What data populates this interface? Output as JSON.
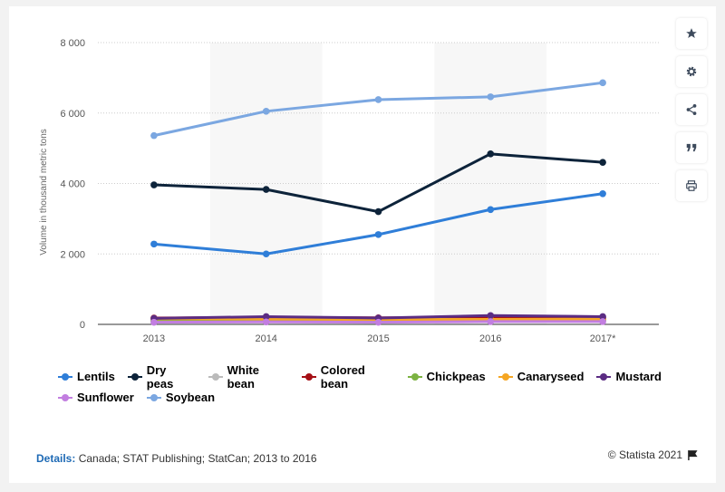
{
  "chart_data": {
    "type": "line",
    "categories": [
      "2013",
      "2014",
      "2015",
      "2016",
      "2017*"
    ],
    "ylabel": "Volume in thousand metric tons",
    "ylim": [
      0,
      8000
    ],
    "yticks": [
      "0",
      "2 000",
      "4 000",
      "6 000",
      "8 000"
    ],
    "grid": true,
    "legend_position": "bottom",
    "series": [
      {
        "name": "Lentils",
        "color": "#2f7ed8",
        "values": [
          2280,
          2000,
          2550,
          3260,
          3710
        ]
      },
      {
        "name": "Dry peas",
        "color": "#0d233a",
        "values": [
          3960,
          3830,
          3200,
          4840,
          4600
        ]
      },
      {
        "name": "White bean",
        "color": "#bbbbbb",
        "values": [
          90,
          100,
          95,
          110,
          105
        ]
      },
      {
        "name": "Colored bean",
        "color": "#a50f15",
        "values": [
          180,
          200,
          185,
          190,
          180
        ]
      },
      {
        "name": "Chickpeas",
        "color": "#7cb342",
        "values": [
          100,
          120,
          110,
          130,
          125
        ]
      },
      {
        "name": "Canaryseed",
        "color": "#f5a623",
        "values": [
          160,
          150,
          140,
          140,
          150
        ]
      },
      {
        "name": "Mustard",
        "color": "#5b2c83",
        "values": [
          170,
          220,
          180,
          250,
          220
        ]
      },
      {
        "name": "Sunflower",
        "color": "#c27ee0",
        "values": [
          60,
          70,
          60,
          80,
          80
        ]
      },
      {
        "name": "Soybean",
        "color": "#7ba7e1",
        "values": [
          5360,
          6050,
          6380,
          6460,
          6860
        ]
      }
    ]
  },
  "toolbar": {
    "icons": [
      "star-icon",
      "gear-icon",
      "share-icon",
      "quote-icon",
      "print-icon"
    ]
  },
  "footer": {
    "details_label": "Details:",
    "details_text": "Canada; STAT Publishing; StatCan; 2013 to 2016",
    "credit": "© Statista 2021"
  }
}
